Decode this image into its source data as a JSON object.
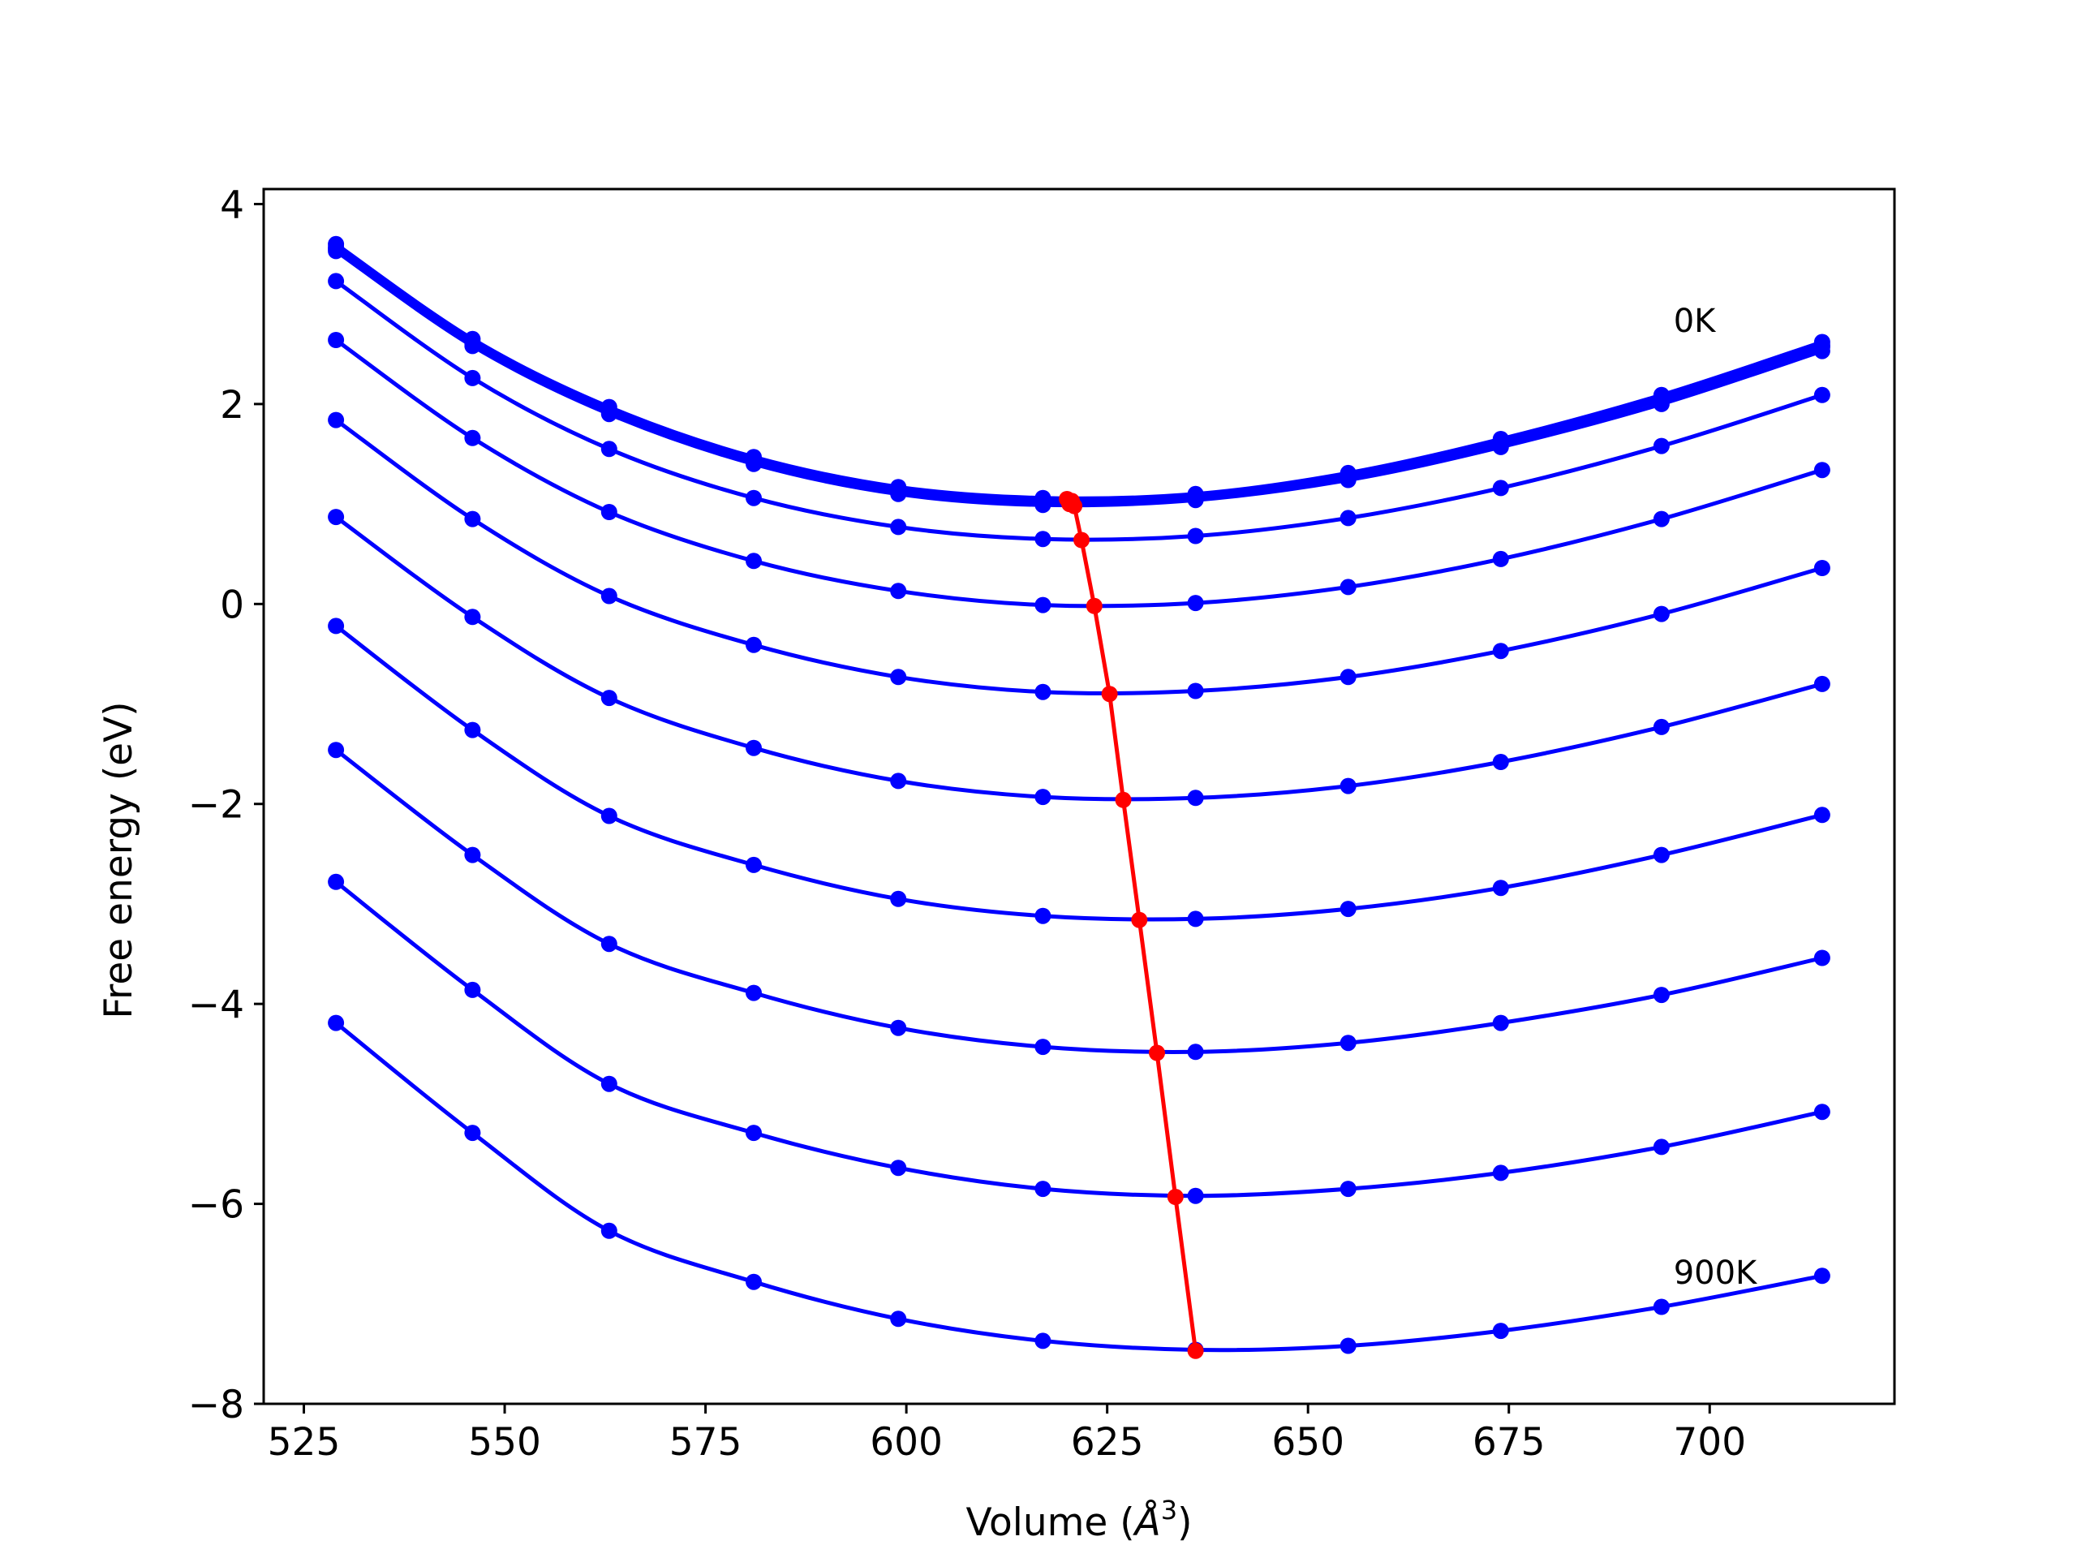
{
  "chart_data": {
    "type": "line",
    "xlabel": "Volume (",
    "xlabel_unit": "Å",
    "xlabel_sup": "3",
    "xlabel_close": ")",
    "ylabel": "Free energy (eV)",
    "xlim": [
      520,
      723
    ],
    "ylim": [
      -8,
      4.15
    ],
    "x_ticks": [
      525,
      550,
      575,
      600,
      625,
      650,
      675,
      700
    ],
    "y_ticks": [
      -8,
      -6,
      -4,
      -2,
      0,
      2,
      4
    ],
    "x_tick_labels": [
      "525",
      "550",
      "575",
      "600",
      "625",
      "650",
      "675",
      "700"
    ],
    "y_tick_labels": [
      "−8",
      "−6",
      "−4",
      "−2",
      "0",
      "2",
      "4"
    ],
    "grid": false,
    "curve_color": "#0000ff",
    "min_color": "#ff0000",
    "x": [
      529,
      546,
      563,
      581,
      599,
      617,
      636,
      655,
      674,
      694,
      714
    ],
    "series": [
      {
        "values": [
          3.6,
          2.65,
          1.97,
          1.47,
          1.17,
          1.06,
          1.1,
          1.31,
          1.65,
          2.09,
          2.62
        ]
      },
      {
        "values": [
          3.55,
          2.6,
          1.92,
          1.42,
          1.12,
          1.01,
          1.06,
          1.26,
          1.6,
          2.04,
          2.57
        ]
      },
      {
        "values": [
          3.57,
          2.62,
          1.94,
          1.44,
          1.14,
          1.03,
          1.08,
          1.28,
          1.62,
          2.06,
          2.59
        ]
      },
      {
        "values": [
          3.53,
          2.58,
          1.9,
          1.4,
          1.1,
          0.99,
          1.04,
          1.24,
          1.57,
          2.0,
          2.53
        ]
      },
      {
        "values": [
          3.23,
          2.26,
          1.55,
          1.06,
          0.77,
          0.65,
          0.68,
          0.86,
          1.16,
          1.58,
          2.09
        ]
      },
      {
        "values": [
          2.64,
          1.66,
          0.92,
          0.43,
          0.13,
          -0.01,
          0.01,
          0.17,
          0.45,
          0.85,
          1.34
        ]
      },
      {
        "values": [
          1.84,
          0.85,
          0.08,
          -0.41,
          -0.73,
          -0.88,
          -0.87,
          -0.73,
          -0.47,
          -0.1,
          0.36
        ]
      },
      {
        "values": [
          0.87,
          -0.13,
          -0.94,
          -1.44,
          -1.77,
          -1.93,
          -1.94,
          -1.82,
          -1.58,
          -1.23,
          -0.8
        ]
      },
      {
        "values": [
          -0.22,
          -1.26,
          -2.12,
          -2.61,
          -2.95,
          -3.12,
          -3.15,
          -3.05,
          -2.84,
          -2.51,
          -2.11
        ]
      },
      {
        "values": [
          -1.46,
          -2.51,
          -3.4,
          -3.89,
          -4.24,
          -4.43,
          -4.48,
          -4.39,
          -4.19,
          -3.91,
          -3.54
        ]
      },
      {
        "values": [
          -2.78,
          -3.86,
          -4.8,
          -5.29,
          -5.64,
          -5.85,
          -5.92,
          -5.85,
          -5.69,
          -5.43,
          -5.08
        ]
      },
      {
        "values": [
          -4.19,
          -5.29,
          -6.27,
          -6.78,
          -7.15,
          -7.37,
          -7.46,
          -7.42,
          -7.27,
          -7.03,
          -6.72
        ]
      }
    ],
    "minima": {
      "x": [
        620.0,
        620.3,
        620.6,
        620.9,
        621.8,
        623.4,
        625.3,
        627.0,
        629.0,
        631.2,
        633.5,
        636.0
      ],
      "y": [
        1.05,
        1.0,
        1.03,
        0.98,
        0.64,
        -0.02,
        -0.9,
        -1.96,
        -3.16,
        -4.49,
        -5.93,
        -7.47
      ]
    },
    "annotations": [
      {
        "text": "0K",
        "x": 695.5,
        "y": 2.72
      },
      {
        "text": "900K",
        "x": 695.5,
        "y": -6.8
      }
    ]
  }
}
